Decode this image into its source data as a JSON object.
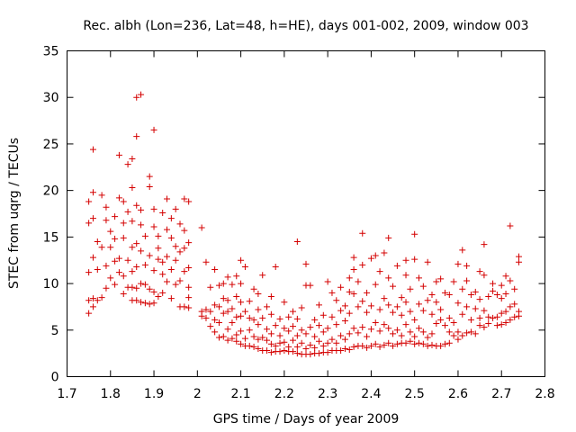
{
  "chart_data": {
    "type": "scatter",
    "title": "Rec. albh (Lon=236, Lat=48, h=HE), days 001-002, 2009, window 003",
    "xlabel": "GPS time / Days of year 2009",
    "ylabel": "STEC from uqrg / TECUs",
    "xlim": [
      1.7,
      2.8
    ],
    "ylim": [
      0,
      35
    ],
    "xticks": [
      "1.7",
      "1.8",
      "1.9",
      "2",
      "2.1",
      "2.2",
      "2.3",
      "2.4",
      "2.5",
      "2.6",
      "2.7",
      "2.8"
    ],
    "yticks": [
      "0",
      "5",
      "10",
      "15",
      "20",
      "25",
      "30",
      "35"
    ],
    "grid": false,
    "marker": "+",
    "color": "#d40000",
    "points": [
      [
        1.75,
        6.8
      ],
      [
        1.75,
        8.2
      ],
      [
        1.75,
        11.2
      ],
      [
        1.75,
        16.5
      ],
      [
        1.75,
        18.8
      ],
      [
        1.76,
        7.5
      ],
      [
        1.76,
        8.4
      ],
      [
        1.76,
        12.8
      ],
      [
        1.76,
        17.0
      ],
      [
        1.76,
        19.8
      ],
      [
        1.76,
        24.4
      ],
      [
        1.77,
        8.2
      ],
      [
        1.77,
        11.5
      ],
      [
        1.77,
        14.5
      ],
      [
        1.78,
        8.5
      ],
      [
        1.78,
        13.9
      ],
      [
        1.78,
        19.5
      ],
      [
        1.79,
        9.5
      ],
      [
        1.79,
        11.9
      ],
      [
        1.79,
        16.8
      ],
      [
        1.79,
        18.2
      ],
      [
        1.8,
        10.6
      ],
      [
        1.8,
        13.9
      ],
      [
        1.8,
        15.6
      ],
      [
        1.81,
        9.9
      ],
      [
        1.81,
        12.4
      ],
      [
        1.81,
        14.8
      ],
      [
        1.81,
        17.2
      ],
      [
        1.82,
        11.2
      ],
      [
        1.82,
        12.7
      ],
      [
        1.82,
        19.2
      ],
      [
        1.82,
        23.8
      ],
      [
        1.83,
        8.9
      ],
      [
        1.83,
        10.8
      ],
      [
        1.83,
        14.9
      ],
      [
        1.83,
        16.5
      ],
      [
        1.83,
        18.8
      ],
      [
        1.84,
        9.6
      ],
      [
        1.84,
        12.5
      ],
      [
        1.84,
        17.7
      ],
      [
        1.84,
        22.8
      ],
      [
        1.85,
        8.2
      ],
      [
        1.85,
        9.6
      ],
      [
        1.85,
        11.3
      ],
      [
        1.85,
        13.9
      ],
      [
        1.85,
        16.7
      ],
      [
        1.85,
        20.3
      ],
      [
        1.85,
        23.4
      ],
      [
        1.86,
        8.2
      ],
      [
        1.86,
        9.5
      ],
      [
        1.86,
        11.8
      ],
      [
        1.86,
        14.3
      ],
      [
        1.86,
        18.4
      ],
      [
        1.86,
        25.8
      ],
      [
        1.86,
        30.0
      ],
      [
        1.87,
        8.0
      ],
      [
        1.87,
        10.0
      ],
      [
        1.87,
        13.5
      ],
      [
        1.87,
        16.3
      ],
      [
        1.87,
        17.9
      ],
      [
        1.87,
        30.3
      ],
      [
        1.88,
        7.9
      ],
      [
        1.88,
        9.9
      ],
      [
        1.88,
        12.0
      ],
      [
        1.88,
        15.1
      ],
      [
        1.89,
        7.8
      ],
      [
        1.89,
        9.4
      ],
      [
        1.89,
        13.0
      ],
      [
        1.89,
        20.4
      ],
      [
        1.89,
        21.5
      ],
      [
        1.9,
        7.9
      ],
      [
        1.9,
        9.1
      ],
      [
        1.9,
        11.4
      ],
      [
        1.9,
        16.1
      ],
      [
        1.9,
        18.0
      ],
      [
        1.9,
        26.5
      ],
      [
        1.91,
        8.6
      ],
      [
        1.91,
        12.6
      ],
      [
        1.91,
        13.8
      ],
      [
        1.91,
        15.1
      ],
      [
        1.92,
        9.0
      ],
      [
        1.92,
        11.0
      ],
      [
        1.92,
        12.3
      ],
      [
        1.92,
        17.6
      ],
      [
        1.93,
        10.2
      ],
      [
        1.93,
        12.9
      ],
      [
        1.93,
        15.8
      ],
      [
        1.93,
        19.1
      ],
      [
        1.94,
        8.4
      ],
      [
        1.94,
        11.5
      ],
      [
        1.94,
        14.9
      ],
      [
        1.94,
        17.0
      ],
      [
        1.95,
        9.9
      ],
      [
        1.95,
        12.5
      ],
      [
        1.95,
        14.0
      ],
      [
        1.95,
        18.0
      ],
      [
        1.96,
        7.5
      ],
      [
        1.96,
        10.3
      ],
      [
        1.96,
        13.4
      ],
      [
        1.96,
        16.4
      ],
      [
        1.97,
        7.5
      ],
      [
        1.97,
        11.3
      ],
      [
        1.97,
        13.8
      ],
      [
        1.97,
        15.7
      ],
      [
        1.97,
        19.1
      ],
      [
        1.98,
        7.4
      ],
      [
        1.98,
        8.5
      ],
      [
        1.98,
        9.6
      ],
      [
        1.98,
        11.7
      ],
      [
        1.98,
        14.4
      ],
      [
        1.98,
        18.8
      ],
      [
        2.01,
        6.5
      ],
      [
        2.01,
        7.0
      ],
      [
        2.01,
        16.0
      ],
      [
        2.02,
        6.3
      ],
      [
        2.02,
        7.2
      ],
      [
        2.02,
        12.3
      ],
      [
        2.03,
        5.4
      ],
      [
        2.03,
        7.0
      ],
      [
        2.03,
        9.6
      ],
      [
        2.04,
        4.8
      ],
      [
        2.04,
        6.1
      ],
      [
        2.04,
        7.7
      ],
      [
        2.04,
        11.5
      ],
      [
        2.05,
        4.2
      ],
      [
        2.05,
        5.8
      ],
      [
        2.05,
        7.5
      ],
      [
        2.05,
        9.8
      ],
      [
        2.06,
        4.3
      ],
      [
        2.06,
        6.8
      ],
      [
        2.06,
        8.4
      ],
      [
        2.06,
        10.0
      ],
      [
        2.07,
        3.9
      ],
      [
        2.07,
        5.1
      ],
      [
        2.07,
        7.0
      ],
      [
        2.07,
        8.2
      ],
      [
        2.07,
        10.7
      ],
      [
        2.08,
        4.1
      ],
      [
        2.08,
        5.8
      ],
      [
        2.08,
        7.3
      ],
      [
        2.08,
        9.9
      ],
      [
        2.09,
        3.8
      ],
      [
        2.09,
        4.5
      ],
      [
        2.09,
        6.4
      ],
      [
        2.09,
        8.6
      ],
      [
        2.09,
        10.8
      ],
      [
        2.1,
        3.5
      ],
      [
        2.1,
        4.9
      ],
      [
        2.1,
        6.5
      ],
      [
        2.1,
        8.0
      ],
      [
        2.1,
        10.0
      ],
      [
        2.1,
        12.5
      ],
      [
        2.11,
        3.3
      ],
      [
        2.11,
        4.1
      ],
      [
        2.11,
        7.0
      ],
      [
        2.11,
        11.8
      ],
      [
        2.12,
        3.3
      ],
      [
        2.12,
        5.0
      ],
      [
        2.12,
        6.3
      ],
      [
        2.12,
        8.1
      ],
      [
        2.13,
        3.2
      ],
      [
        2.13,
        4.3
      ],
      [
        2.13,
        6.1
      ],
      [
        2.13,
        9.4
      ],
      [
        2.14,
        3.0
      ],
      [
        2.14,
        4.0
      ],
      [
        2.14,
        5.6
      ],
      [
        2.14,
        7.2
      ],
      [
        2.14,
        8.9
      ],
      [
        2.15,
        2.8
      ],
      [
        2.15,
        4.2
      ],
      [
        2.15,
        6.3
      ],
      [
        2.15,
        10.9
      ],
      [
        2.16,
        2.8
      ],
      [
        2.16,
        3.9
      ],
      [
        2.16,
        5.1
      ],
      [
        2.16,
        7.5
      ],
      [
        2.17,
        2.6
      ],
      [
        2.17,
        3.5
      ],
      [
        2.17,
        4.6
      ],
      [
        2.17,
        6.7
      ],
      [
        2.17,
        8.6
      ],
      [
        2.18,
        2.7
      ],
      [
        2.18,
        3.3
      ],
      [
        2.18,
        5.5
      ],
      [
        2.18,
        11.8
      ],
      [
        2.19,
        2.7
      ],
      [
        2.19,
        3.6
      ],
      [
        2.19,
        4.4
      ],
      [
        2.19,
        6.2
      ],
      [
        2.2,
        2.8
      ],
      [
        2.2,
        3.7
      ],
      [
        2.2,
        5.2
      ],
      [
        2.2,
        8.0
      ],
      [
        2.21,
        2.7
      ],
      [
        2.21,
        3.2
      ],
      [
        2.21,
        4.9
      ],
      [
        2.21,
        6.4
      ],
      [
        2.22,
        2.7
      ],
      [
        2.22,
        3.9
      ],
      [
        2.22,
        5.4
      ],
      [
        2.22,
        7.0
      ],
      [
        2.23,
        2.5
      ],
      [
        2.23,
        3.2
      ],
      [
        2.23,
        4.4
      ],
      [
        2.23,
        6.2
      ],
      [
        2.23,
        14.5
      ],
      [
        2.24,
        2.4
      ],
      [
        2.24,
        3.6
      ],
      [
        2.24,
        5.0
      ],
      [
        2.24,
        7.4
      ],
      [
        2.25,
        2.4
      ],
      [
        2.25,
        3.0
      ],
      [
        2.25,
        4.6
      ],
      [
        2.25,
        9.8
      ],
      [
        2.25,
        12.1
      ],
      [
        2.26,
        2.4
      ],
      [
        2.26,
        3.4
      ],
      [
        2.26,
        5.3
      ],
      [
        2.26,
        9.8
      ],
      [
        2.27,
        2.5
      ],
      [
        2.27,
        3.1
      ],
      [
        2.27,
        4.3
      ],
      [
        2.27,
        6.1
      ],
      [
        2.28,
        2.5
      ],
      [
        2.28,
        3.8
      ],
      [
        2.28,
        5.5
      ],
      [
        2.28,
        7.7
      ],
      [
        2.29,
        2.6
      ],
      [
        2.29,
        3.3
      ],
      [
        2.29,
        4.8
      ],
      [
        2.29,
        6.6
      ],
      [
        2.3,
        2.6
      ],
      [
        2.3,
        3.6
      ],
      [
        2.3,
        5.2
      ],
      [
        2.3,
        10.2
      ],
      [
        2.31,
        2.8
      ],
      [
        2.31,
        4.0
      ],
      [
        2.31,
        6.4
      ],
      [
        2.31,
        9.0
      ],
      [
        2.32,
        2.8
      ],
      [
        2.32,
        3.6
      ],
      [
        2.32,
        5.6
      ],
      [
        2.32,
        8.2
      ],
      [
        2.33,
        2.8
      ],
      [
        2.33,
        4.4
      ],
      [
        2.33,
        7.1
      ],
      [
        2.33,
        9.6
      ],
      [
        2.34,
        3.0
      ],
      [
        2.34,
        4.0
      ],
      [
        2.34,
        6.0
      ],
      [
        2.34,
        7.6
      ],
      [
        2.35,
        2.9
      ],
      [
        2.35,
        4.6
      ],
      [
        2.35,
        6.8
      ],
      [
        2.35,
        9.1
      ],
      [
        2.35,
        10.6
      ],
      [
        2.36,
        3.2
      ],
      [
        2.36,
        5.2
      ],
      [
        2.36,
        8.9
      ],
      [
        2.36,
        11.5
      ],
      [
        2.36,
        12.8
      ],
      [
        2.37,
        3.3
      ],
      [
        2.37,
        4.7
      ],
      [
        2.37,
        7.5
      ],
      [
        2.37,
        10.2
      ],
      [
        2.38,
        3.3
      ],
      [
        2.38,
        5.3
      ],
      [
        2.38,
        8.1
      ],
      [
        2.38,
        12.0
      ],
      [
        2.38,
        15.4
      ],
      [
        2.39,
        3.1
      ],
      [
        2.39,
        4.3
      ],
      [
        2.39,
        6.9
      ],
      [
        2.39,
        9.0
      ],
      [
        2.4,
        3.3
      ],
      [
        2.4,
        5.1
      ],
      [
        2.4,
        7.6
      ],
      [
        2.4,
        12.7
      ],
      [
        2.41,
        3.5
      ],
      [
        2.41,
        5.8
      ],
      [
        2.41,
        9.9
      ],
      [
        2.41,
        13.0
      ],
      [
        2.42,
        3.2
      ],
      [
        2.42,
        4.9
      ],
      [
        2.42,
        7.2
      ],
      [
        2.42,
        11.3
      ],
      [
        2.43,
        3.4
      ],
      [
        2.43,
        5.6
      ],
      [
        2.43,
        8.4
      ],
      [
        2.43,
        13.3
      ],
      [
        2.44,
        3.6
      ],
      [
        2.44,
        5.2
      ],
      [
        2.44,
        7.7
      ],
      [
        2.44,
        10.6
      ],
      [
        2.44,
        14.9
      ],
      [
        2.45,
        3.3
      ],
      [
        2.45,
        4.6
      ],
      [
        2.45,
        6.9
      ],
      [
        2.45,
        9.7
      ],
      [
        2.46,
        3.5
      ],
      [
        2.46,
        5.0
      ],
      [
        2.46,
        7.5
      ],
      [
        2.46,
        11.9
      ],
      [
        2.47,
        3.6
      ],
      [
        2.47,
        4.4
      ],
      [
        2.47,
        6.6
      ],
      [
        2.47,
        8.5
      ],
      [
        2.48,
        3.6
      ],
      [
        2.48,
        5.6
      ],
      [
        2.48,
        8.0
      ],
      [
        2.48,
        10.9
      ],
      [
        2.48,
        12.5
      ],
      [
        2.49,
        3.8
      ],
      [
        2.49,
        4.8
      ],
      [
        2.49,
        7.0
      ],
      [
        2.49,
        9.4
      ],
      [
        2.5,
        3.5
      ],
      [
        2.5,
        4.3
      ],
      [
        2.5,
        6.1
      ],
      [
        2.5,
        12.6
      ],
      [
        2.5,
        15.3
      ],
      [
        2.51,
        3.6
      ],
      [
        2.51,
        5.2
      ],
      [
        2.51,
        7.8
      ],
      [
        2.51,
        10.6
      ],
      [
        2.52,
        3.5
      ],
      [
        2.52,
        4.8
      ],
      [
        2.52,
        7.1
      ],
      [
        2.52,
        9.7
      ],
      [
        2.53,
        3.3
      ],
      [
        2.53,
        4.2
      ],
      [
        2.53,
        8.2
      ],
      [
        2.53,
        12.3
      ],
      [
        2.54,
        3.4
      ],
      [
        2.54,
        4.6
      ],
      [
        2.54,
        6.7
      ],
      [
        2.54,
        8.8
      ],
      [
        2.55,
        3.3
      ],
      [
        2.55,
        5.7
      ],
      [
        2.55,
        8.0
      ],
      [
        2.55,
        10.2
      ],
      [
        2.56,
        3.3
      ],
      [
        2.56,
        6.1
      ],
      [
        2.56,
        7.2
      ],
      [
        2.56,
        10.5
      ],
      [
        2.57,
        3.5
      ],
      [
        2.57,
        5.5
      ],
      [
        2.57,
        9.0
      ],
      [
        2.58,
        3.6
      ],
      [
        2.58,
        4.8
      ],
      [
        2.58,
        6.3
      ],
      [
        2.58,
        8.8
      ],
      [
        2.59,
        4.4
      ],
      [
        2.59,
        5.8
      ],
      [
        2.59,
        10.2
      ],
      [
        2.6,
        4.0
      ],
      [
        2.6,
        4.8
      ],
      [
        2.6,
        7.9
      ],
      [
        2.6,
        12.1
      ],
      [
        2.61,
        4.4
      ],
      [
        2.61,
        6.7
      ],
      [
        2.61,
        9.4
      ],
      [
        2.61,
        13.6
      ],
      [
        2.62,
        4.7
      ],
      [
        2.62,
        7.5
      ],
      [
        2.62,
        10.3
      ],
      [
        2.62,
        11.9
      ],
      [
        2.63,
        4.8
      ],
      [
        2.63,
        6.1
      ],
      [
        2.63,
        8.8
      ],
      [
        2.64,
        4.6
      ],
      [
        2.64,
        7.3
      ],
      [
        2.64,
        9.1
      ],
      [
        2.65,
        5.5
      ],
      [
        2.65,
        6.3
      ],
      [
        2.65,
        8.3
      ],
      [
        2.65,
        11.3
      ],
      [
        2.66,
        5.3
      ],
      [
        2.66,
        7.1
      ],
      [
        2.66,
        10.9
      ],
      [
        2.66,
        14.2
      ],
      [
        2.67,
        5.7
      ],
      [
        2.67,
        6.4
      ],
      [
        2.67,
        8.6
      ],
      [
        2.68,
        6.3
      ],
      [
        2.68,
        9.2
      ],
      [
        2.68,
        10.0
      ],
      [
        2.69,
        5.5
      ],
      [
        2.69,
        6.4
      ],
      [
        2.69,
        8.8
      ],
      [
        2.7,
        5.6
      ],
      [
        2.7,
        6.8
      ],
      [
        2.7,
        8.4
      ],
      [
        2.7,
        9.8
      ],
      [
        2.71,
        5.8
      ],
      [
        2.71,
        7.0
      ],
      [
        2.71,
        8.9
      ],
      [
        2.71,
        10.8
      ],
      [
        2.72,
        6.1
      ],
      [
        2.72,
        7.5
      ],
      [
        2.72,
        10.3
      ],
      [
        2.72,
        16.2
      ],
      [
        2.73,
        6.4
      ],
      [
        2.73,
        7.8
      ],
      [
        2.73,
        9.4
      ],
      [
        2.74,
        6.5
      ],
      [
        2.74,
        7.0
      ],
      [
        2.74,
        12.3
      ],
      [
        2.74,
        12.9
      ]
    ]
  }
}
